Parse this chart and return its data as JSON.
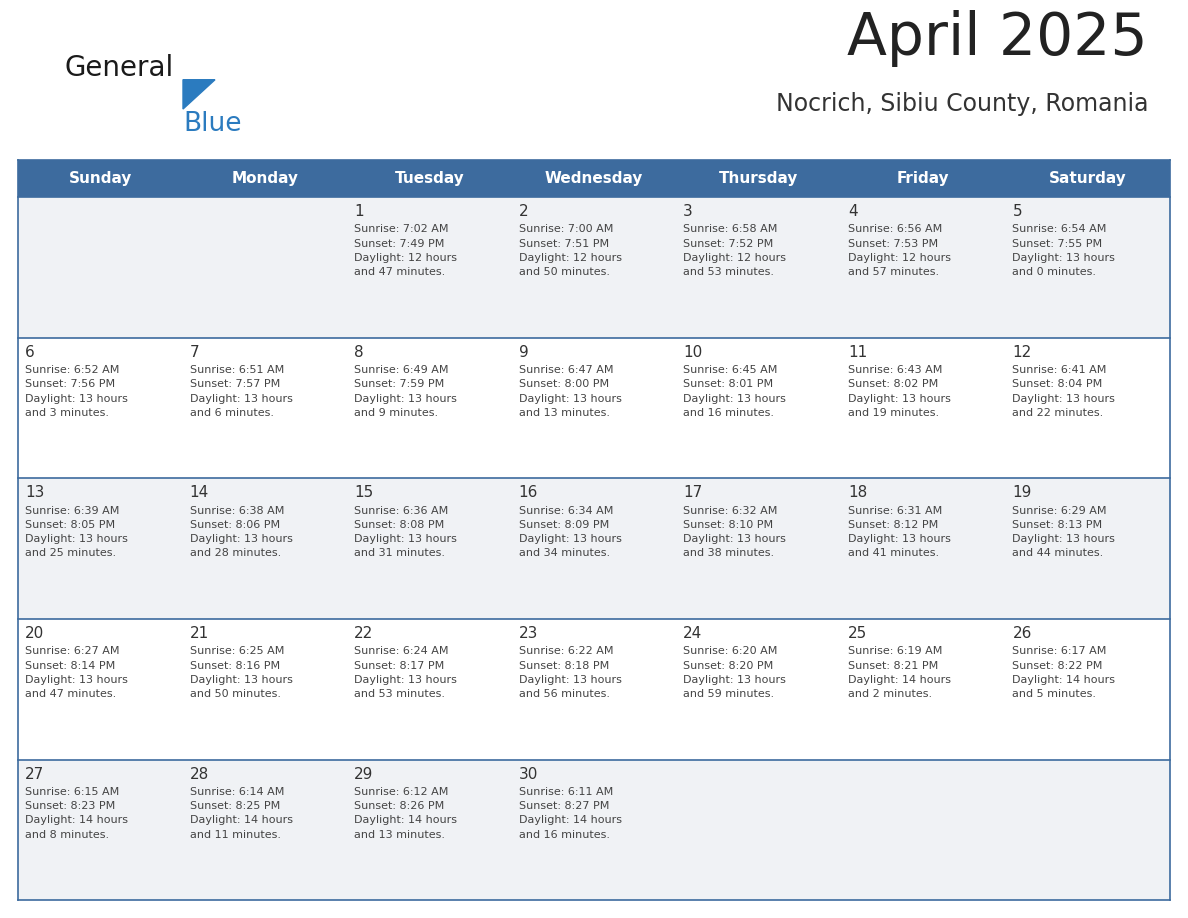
{
  "title": "April 2025",
  "subtitle": "Nocrich, Sibiu County, Romania",
  "days_of_week": [
    "Sunday",
    "Monday",
    "Tuesday",
    "Wednesday",
    "Thursday",
    "Friday",
    "Saturday"
  ],
  "header_bg_color": "#3d6b9e",
  "header_text_color": "#ffffff",
  "cell_bg_odd": "#f0f2f5",
  "cell_bg_even": "#ffffff",
  "cell_line_color": "#3d6b9e",
  "text_color": "#444444",
  "day_number_color": "#333333",
  "logo_general_color": "#1a1a1a",
  "logo_blue_color": "#2b7bbf",
  "logo_triangle_color": "#2b7bbf",
  "title_color": "#222222",
  "subtitle_color": "#333333",
  "calendar_data": [
    [
      null,
      null,
      {
        "day": 1,
        "sunrise": "7:02 AM",
        "sunset": "7:49 PM",
        "daylight_line1": "Daylight: 12 hours",
        "daylight_line2": "and 47 minutes."
      },
      {
        "day": 2,
        "sunrise": "7:00 AM",
        "sunset": "7:51 PM",
        "daylight_line1": "Daylight: 12 hours",
        "daylight_line2": "and 50 minutes."
      },
      {
        "day": 3,
        "sunrise": "6:58 AM",
        "sunset": "7:52 PM",
        "daylight_line1": "Daylight: 12 hours",
        "daylight_line2": "and 53 minutes."
      },
      {
        "day": 4,
        "sunrise": "6:56 AM",
        "sunset": "7:53 PM",
        "daylight_line1": "Daylight: 12 hours",
        "daylight_line2": "and 57 minutes."
      },
      {
        "day": 5,
        "sunrise": "6:54 AM",
        "sunset": "7:55 PM",
        "daylight_line1": "Daylight: 13 hours",
        "daylight_line2": "and 0 minutes."
      }
    ],
    [
      {
        "day": 6,
        "sunrise": "6:52 AM",
        "sunset": "7:56 PM",
        "daylight_line1": "Daylight: 13 hours",
        "daylight_line2": "and 3 minutes."
      },
      {
        "day": 7,
        "sunrise": "6:51 AM",
        "sunset": "7:57 PM",
        "daylight_line1": "Daylight: 13 hours",
        "daylight_line2": "and 6 minutes."
      },
      {
        "day": 8,
        "sunrise": "6:49 AM",
        "sunset": "7:59 PM",
        "daylight_line1": "Daylight: 13 hours",
        "daylight_line2": "and 9 minutes."
      },
      {
        "day": 9,
        "sunrise": "6:47 AM",
        "sunset": "8:00 PM",
        "daylight_line1": "Daylight: 13 hours",
        "daylight_line2": "and 13 minutes."
      },
      {
        "day": 10,
        "sunrise": "6:45 AM",
        "sunset": "8:01 PM",
        "daylight_line1": "Daylight: 13 hours",
        "daylight_line2": "and 16 minutes."
      },
      {
        "day": 11,
        "sunrise": "6:43 AM",
        "sunset": "8:02 PM",
        "daylight_line1": "Daylight: 13 hours",
        "daylight_line2": "and 19 minutes."
      },
      {
        "day": 12,
        "sunrise": "6:41 AM",
        "sunset": "8:04 PM",
        "daylight_line1": "Daylight: 13 hours",
        "daylight_line2": "and 22 minutes."
      }
    ],
    [
      {
        "day": 13,
        "sunrise": "6:39 AM",
        "sunset": "8:05 PM",
        "daylight_line1": "Daylight: 13 hours",
        "daylight_line2": "and 25 minutes."
      },
      {
        "day": 14,
        "sunrise": "6:38 AM",
        "sunset": "8:06 PM",
        "daylight_line1": "Daylight: 13 hours",
        "daylight_line2": "and 28 minutes."
      },
      {
        "day": 15,
        "sunrise": "6:36 AM",
        "sunset": "8:08 PM",
        "daylight_line1": "Daylight: 13 hours",
        "daylight_line2": "and 31 minutes."
      },
      {
        "day": 16,
        "sunrise": "6:34 AM",
        "sunset": "8:09 PM",
        "daylight_line1": "Daylight: 13 hours",
        "daylight_line2": "and 34 minutes."
      },
      {
        "day": 17,
        "sunrise": "6:32 AM",
        "sunset": "8:10 PM",
        "daylight_line1": "Daylight: 13 hours",
        "daylight_line2": "and 38 minutes."
      },
      {
        "day": 18,
        "sunrise": "6:31 AM",
        "sunset": "8:12 PM",
        "daylight_line1": "Daylight: 13 hours",
        "daylight_line2": "and 41 minutes."
      },
      {
        "day": 19,
        "sunrise": "6:29 AM",
        "sunset": "8:13 PM",
        "daylight_line1": "Daylight: 13 hours",
        "daylight_line2": "and 44 minutes."
      }
    ],
    [
      {
        "day": 20,
        "sunrise": "6:27 AM",
        "sunset": "8:14 PM",
        "daylight_line1": "Daylight: 13 hours",
        "daylight_line2": "and 47 minutes."
      },
      {
        "day": 21,
        "sunrise": "6:25 AM",
        "sunset": "8:16 PM",
        "daylight_line1": "Daylight: 13 hours",
        "daylight_line2": "and 50 minutes."
      },
      {
        "day": 22,
        "sunrise": "6:24 AM",
        "sunset": "8:17 PM",
        "daylight_line1": "Daylight: 13 hours",
        "daylight_line2": "and 53 minutes."
      },
      {
        "day": 23,
        "sunrise": "6:22 AM",
        "sunset": "8:18 PM",
        "daylight_line1": "Daylight: 13 hours",
        "daylight_line2": "and 56 minutes."
      },
      {
        "day": 24,
        "sunrise": "6:20 AM",
        "sunset": "8:20 PM",
        "daylight_line1": "Daylight: 13 hours",
        "daylight_line2": "and 59 minutes."
      },
      {
        "day": 25,
        "sunrise": "6:19 AM",
        "sunset": "8:21 PM",
        "daylight_line1": "Daylight: 14 hours",
        "daylight_line2": "and 2 minutes."
      },
      {
        "day": 26,
        "sunrise": "6:17 AM",
        "sunset": "8:22 PM",
        "daylight_line1": "Daylight: 14 hours",
        "daylight_line2": "and 5 minutes."
      }
    ],
    [
      {
        "day": 27,
        "sunrise": "6:15 AM",
        "sunset": "8:23 PM",
        "daylight_line1": "Daylight: 14 hours",
        "daylight_line2": "and 8 minutes."
      },
      {
        "day": 28,
        "sunrise": "6:14 AM",
        "sunset": "8:25 PM",
        "daylight_line1": "Daylight: 14 hours",
        "daylight_line2": "and 11 minutes."
      },
      {
        "day": 29,
        "sunrise": "6:12 AM",
        "sunset": "8:26 PM",
        "daylight_line1": "Daylight: 14 hours",
        "daylight_line2": "and 13 minutes."
      },
      {
        "day": 30,
        "sunrise": "6:11 AM",
        "sunset": "8:27 PM",
        "daylight_line1": "Daylight: 14 hours",
        "daylight_line2": "and 16 minutes."
      },
      null,
      null,
      null
    ]
  ]
}
